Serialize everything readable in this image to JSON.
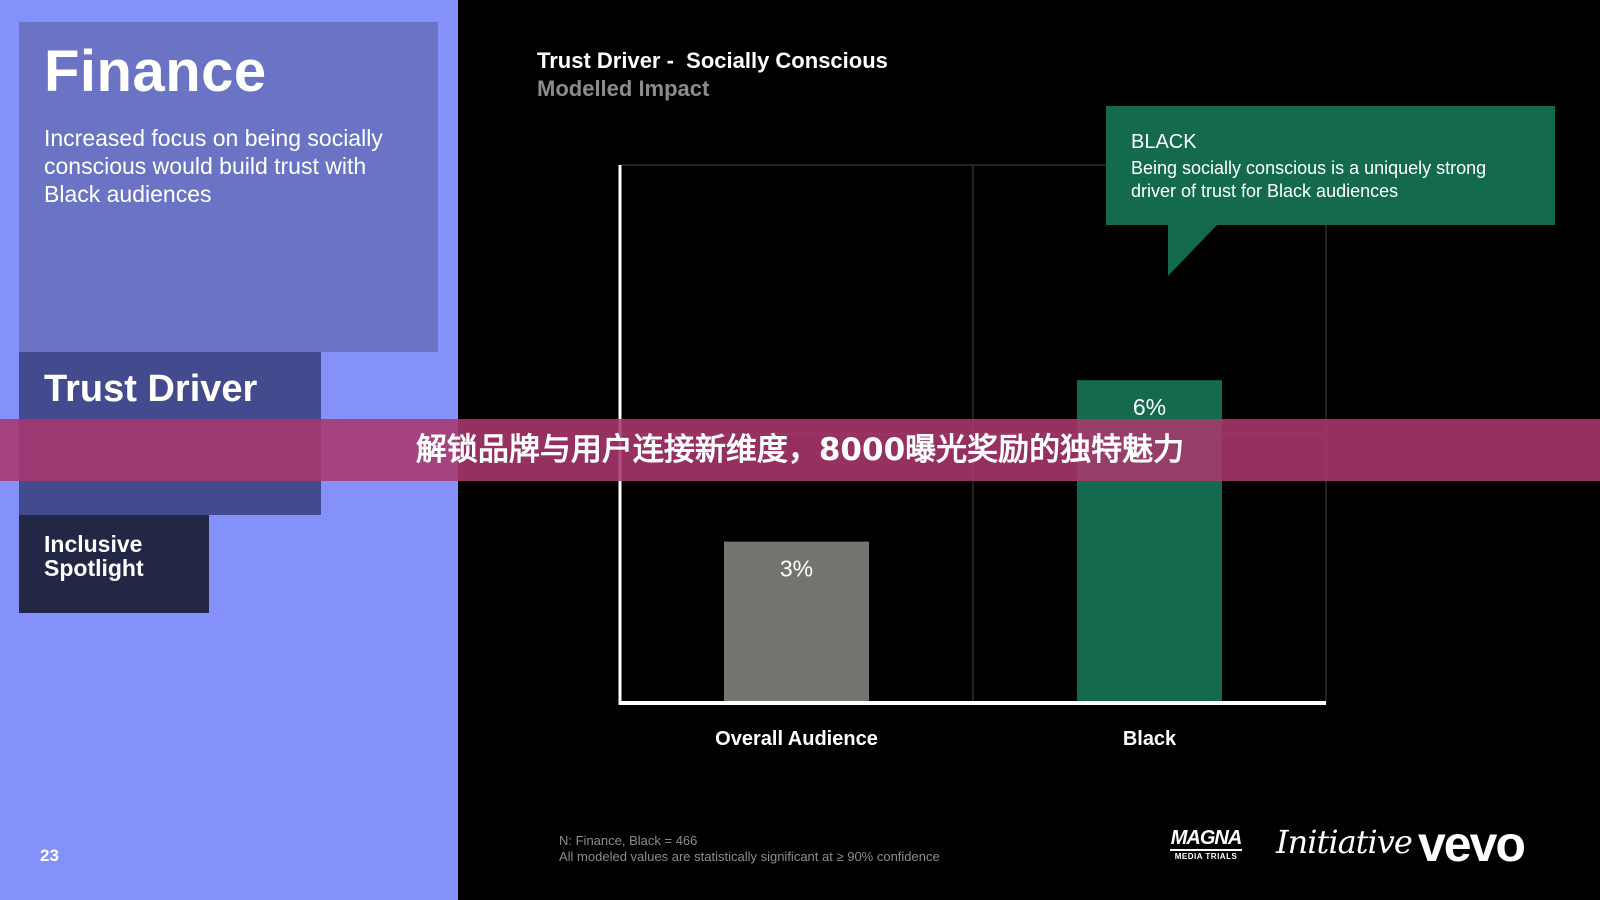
{
  "left": {
    "finance_title": "Finance",
    "finance_desc": "Increased focus on being socially conscious would build trust with Black audiences",
    "trust_title": "Trust Driver",
    "inclusive_title": "Inclusive Spotlight",
    "page_number": "23"
  },
  "callout": {
    "head": "BLACK",
    "body": "Being socially conscious is a uniquely strong driver of trust for Black audiences"
  },
  "footnote": {
    "line1": "N: Finance, Black  = 466",
    "line2": "All modeled values are statistically significant at ≥ 90% confidence"
  },
  "logos": {
    "magna_big": "MAGNA",
    "magna_small": "MEDIA TRIALS",
    "initiative": "Initiative",
    "vevo": "vevo"
  },
  "banner": {
    "text": "解锁品牌与用户连接新维度，8000曝光奖励的独特魅力"
  },
  "colors": {
    "left_bg": "#8591fb",
    "bar_overall": "#757370",
    "bar_black": "#136a4f",
    "callout": "#136a4f"
  },
  "chart_data": {
    "type": "bar",
    "title": "Trust Driver -  Socially Conscious",
    "subtitle": "Modelled Impact",
    "categories": [
      "Overall Audience",
      "Black"
    ],
    "values": [
      3,
      6
    ],
    "data_labels": [
      "3%",
      "6%"
    ],
    "ylim": [
      0,
      10
    ],
    "grid": true,
    "xlabel": "",
    "ylabel": ""
  }
}
